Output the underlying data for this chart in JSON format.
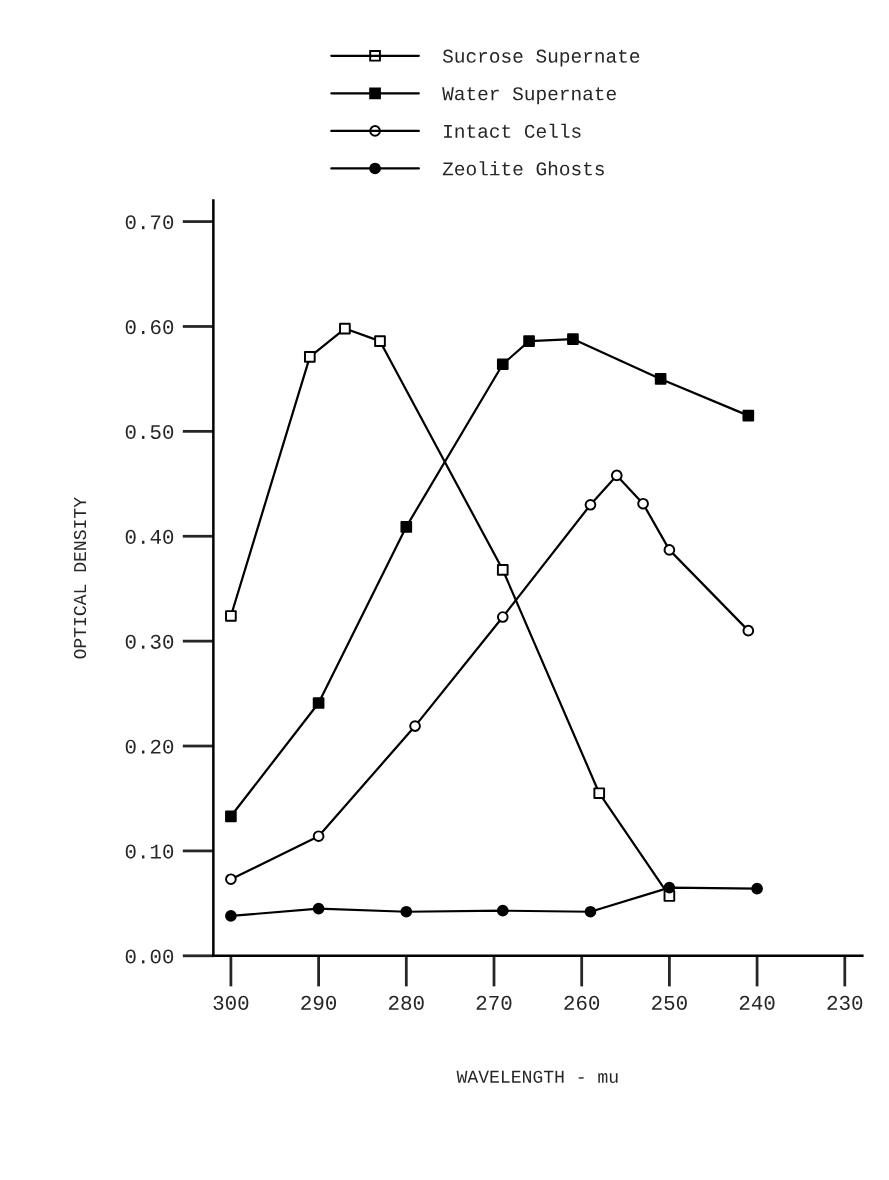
{
  "chart_data": {
    "type": "line",
    "xlabel": "WAVELENGTH - mu",
    "ylabel": "OPTICAL DENSITY",
    "xlim": [
      302,
      228
    ],
    "xticks": [
      300,
      290,
      280,
      270,
      260,
      250,
      240,
      230
    ],
    "ylim": [
      0,
      0.72
    ],
    "yticks": [
      {
        "value": 0,
        "label": "0.00"
      },
      {
        "value": 0.1,
        "label": "0.10"
      },
      {
        "value": 0.2,
        "label": "0.20"
      },
      {
        "value": 0.3,
        "label": "0.30"
      },
      {
        "value": 0.4,
        "label": "0.40"
      },
      {
        "value": 0.5,
        "label": "0.50"
      },
      {
        "value": 0.6,
        "label": "0.60"
      },
      {
        "value": 0.7,
        "label": "0.70"
      }
    ],
    "grid": false,
    "legend": "top",
    "line_style": "solid",
    "series": [
      {
        "name": "Sucrose Supernate",
        "color": "#000000",
        "marker": "square",
        "colors": [
          "#ffffff",
          "#ffffff",
          "#ffffff",
          "#ffffff",
          "#ffffff",
          "#ffffff",
          "#ffffff"
        ],
        "x": [
          300,
          291,
          287,
          283,
          269,
          258,
          250
        ],
        "values": [
          0.324,
          0.571,
          0.598,
          0.586,
          0.368,
          0.155,
          0.057
        ]
      },
      {
        "name": "Water Supernate",
        "color": "#000000",
        "marker": "square",
        "x": [
          300,
          290,
          280,
          269,
          266,
          261,
          251,
          241
        ],
        "values": [
          0.133,
          0.241,
          0.409,
          0.564,
          0.586,
          0.588,
          0.55,
          0.515
        ]
      },
      {
        "name": "Intact Cells",
        "color": "#000000",
        "marker": "circle",
        "colors": [
          "#ffffff",
          "#ffffff",
          "#ffffff",
          "#ffffff",
          "#ffffff",
          "#ffffff",
          "#ffffff",
          "#ffffff",
          "#ffffff"
        ],
        "x": [
          300,
          290,
          279,
          269,
          259,
          256,
          253,
          250,
          241
        ],
        "values": [
          0.073,
          0.114,
          0.219,
          0.323,
          0.43,
          0.458,
          0.431,
          0.387,
          0.31
        ]
      },
      {
        "name": "Zeolite Ghosts",
        "color": "#000000",
        "marker": "circle",
        "x": [
          300,
          290,
          280,
          269,
          259,
          250,
          240
        ],
        "values": [
          0.038,
          0.045,
          0.042,
          0.043,
          0.042,
          0.065,
          0.064
        ]
      }
    ]
  }
}
